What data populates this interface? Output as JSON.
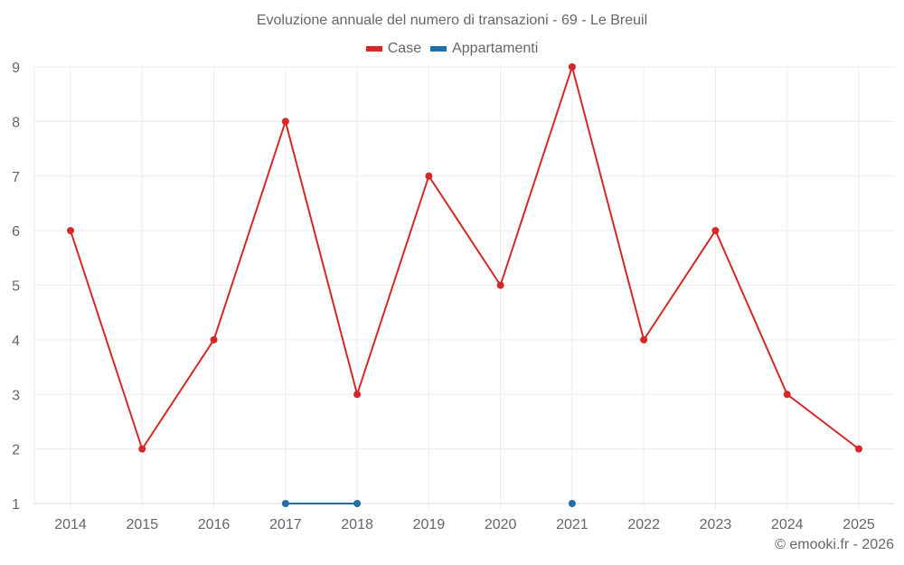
{
  "header": {
    "title": "Evoluzione annuale del numero di transazioni - 69 - Le Breuil"
  },
  "legend": [
    {
      "label": "Case",
      "color": "#d62728"
    },
    {
      "label": "Appartamenti",
      "color": "#1f6fa8"
    }
  ],
  "footer": {
    "credit": "© emooki.fr - 2026"
  },
  "chart_data": {
    "type": "line",
    "title": "Evoluzione annuale del numero di transazioni - 69 - Le Breuil",
    "xlabel": "",
    "ylabel": "",
    "categories": [
      "2014",
      "2015",
      "2016",
      "2017",
      "2018",
      "2019",
      "2020",
      "2021",
      "2022",
      "2023",
      "2024",
      "2025"
    ],
    "series": [
      {
        "name": "Case",
        "color": "#d62728",
        "values": [
          6,
          2,
          4,
          8,
          3,
          7,
          5,
          9,
          4,
          6,
          3,
          2
        ]
      },
      {
        "name": "Appartamenti",
        "color": "#1f6fa8",
        "values": [
          null,
          null,
          null,
          1,
          1,
          null,
          null,
          1,
          null,
          null,
          null,
          null
        ]
      }
    ],
    "ylim": [
      1,
      9
    ],
    "yticks": [
      1,
      2,
      3,
      4,
      5,
      6,
      7,
      8,
      9
    ],
    "grid": true,
    "legend_position": "top"
  }
}
